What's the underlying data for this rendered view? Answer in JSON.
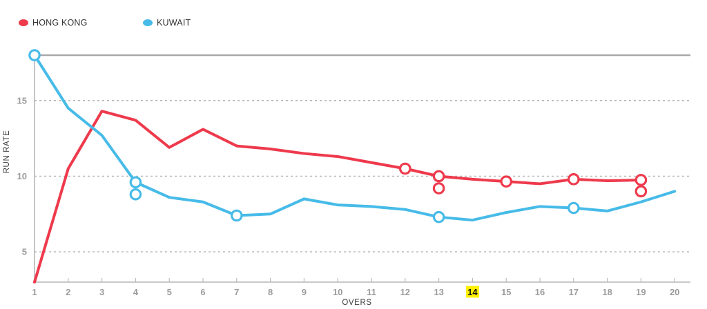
{
  "legend": {
    "items": [
      {
        "id": "hong-kong",
        "label": "HONG KONG",
        "color": "#ee3a4c"
      },
      {
        "id": "kuwait",
        "label": "KUWAIT",
        "color": "#47bbe8"
      }
    ]
  },
  "chart_data": {
    "type": "line",
    "xlabel": "OVERS",
    "ylabel": "RUN RATE",
    "x": [
      1,
      2,
      3,
      4,
      5,
      6,
      7,
      8,
      9,
      10,
      11,
      12,
      13,
      14,
      15,
      16,
      17,
      18,
      19,
      20
    ],
    "ylim": [
      3,
      18
    ],
    "yticks": [
      5,
      10,
      15
    ],
    "grid": "horizontal-dashed",
    "legend_position": "top-left",
    "highlighted_x": 14,
    "highlight_color": "#fff100",
    "axis_color": "#b5b5b5",
    "tick_label_color": "#9b9b9b",
    "series": [
      {
        "id": "hong-kong",
        "name": "HONG KONG",
        "color": "#ee3a4c",
        "values": [
          3.0,
          10.5,
          14.3,
          13.7,
          11.9,
          13.1,
          12.0,
          11.8,
          11.5,
          11.3,
          10.9,
          10.5,
          10.0,
          9.8,
          9.65,
          9.5,
          9.8,
          9.7,
          9.75,
          null
        ],
        "wicket_markers": [
          {
            "over": 12,
            "rate": 10.5
          },
          {
            "over": 13,
            "rate": 10.0
          },
          {
            "over": 13,
            "rate": 9.2
          },
          {
            "over": 15,
            "rate": 9.65
          },
          {
            "over": 17,
            "rate": 9.8
          },
          {
            "over": 19,
            "rate": 9.75
          },
          {
            "over": 19,
            "rate": 9.0
          }
        ]
      },
      {
        "id": "kuwait",
        "name": "KUWAIT",
        "color": "#47bbe8",
        "values": [
          18.0,
          14.5,
          12.7,
          9.6,
          8.6,
          8.3,
          7.4,
          7.5,
          8.5,
          8.1,
          8.0,
          7.8,
          7.3,
          7.1,
          7.6,
          8.0,
          7.9,
          7.7,
          8.3,
          9.0
        ],
        "wicket_markers": [
          {
            "over": 1,
            "rate": 18.0
          },
          {
            "over": 4,
            "rate": 9.6
          },
          {
            "over": 4,
            "rate": 8.8
          },
          {
            "over": 7,
            "rate": 7.4
          },
          {
            "over": 13,
            "rate": 7.3
          },
          {
            "over": 17,
            "rate": 7.9
          }
        ]
      }
    ]
  }
}
